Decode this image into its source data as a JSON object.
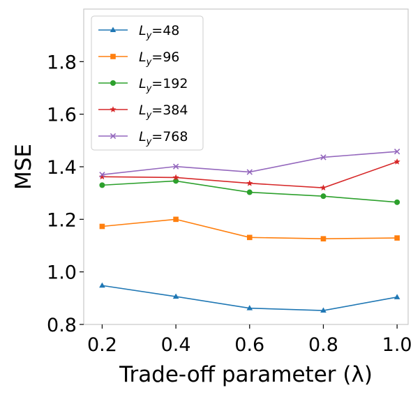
{
  "chart_data": {
    "type": "line",
    "title": "",
    "xlabel": "Trade-off parameter (λ)",
    "ylabel": "MSE",
    "x": [
      0.2,
      0.4,
      0.6,
      0.8,
      1.0
    ],
    "xticks": [
      "0.2",
      "0.4",
      "0.6",
      "0.8",
      "1.0"
    ],
    "yticks": [
      "0.8",
      "1.0",
      "1.2",
      "1.4",
      "1.6",
      "1.8"
    ],
    "xlim": [
      0.15,
      1.03
    ],
    "ylim": [
      0.8,
      2.0
    ],
    "grid": false,
    "legend_position": "upper-left",
    "series": [
      {
        "name_main": "L",
        "name_sub": "y",
        "name_rest": "=48",
        "color": "#1f77b4",
        "marker": "triangle",
        "values": [
          0.948,
          0.906,
          0.862,
          0.853,
          0.904
        ]
      },
      {
        "name_main": "L",
        "name_sub": "y",
        "name_rest": "=96",
        "color": "#ff7f0e",
        "marker": "square",
        "values": [
          1.173,
          1.2,
          1.131,
          1.126,
          1.129
        ]
      },
      {
        "name_main": "L",
        "name_sub": "y",
        "name_rest": "=192",
        "color": "#2ca02c",
        "marker": "circle",
        "values": [
          1.33,
          1.346,
          1.303,
          1.288,
          1.265
        ]
      },
      {
        "name_main": "L",
        "name_sub": "y",
        "name_rest": "=384",
        "color": "#d62728",
        "marker": "star",
        "values": [
          1.362,
          1.359,
          1.337,
          1.32,
          1.419
        ]
      },
      {
        "name_main": "L",
        "name_sub": "y",
        "name_rest": "=768",
        "color": "#9467bd",
        "marker": "x",
        "values": [
          1.37,
          1.401,
          1.38,
          1.436,
          1.458
        ]
      }
    ]
  }
}
